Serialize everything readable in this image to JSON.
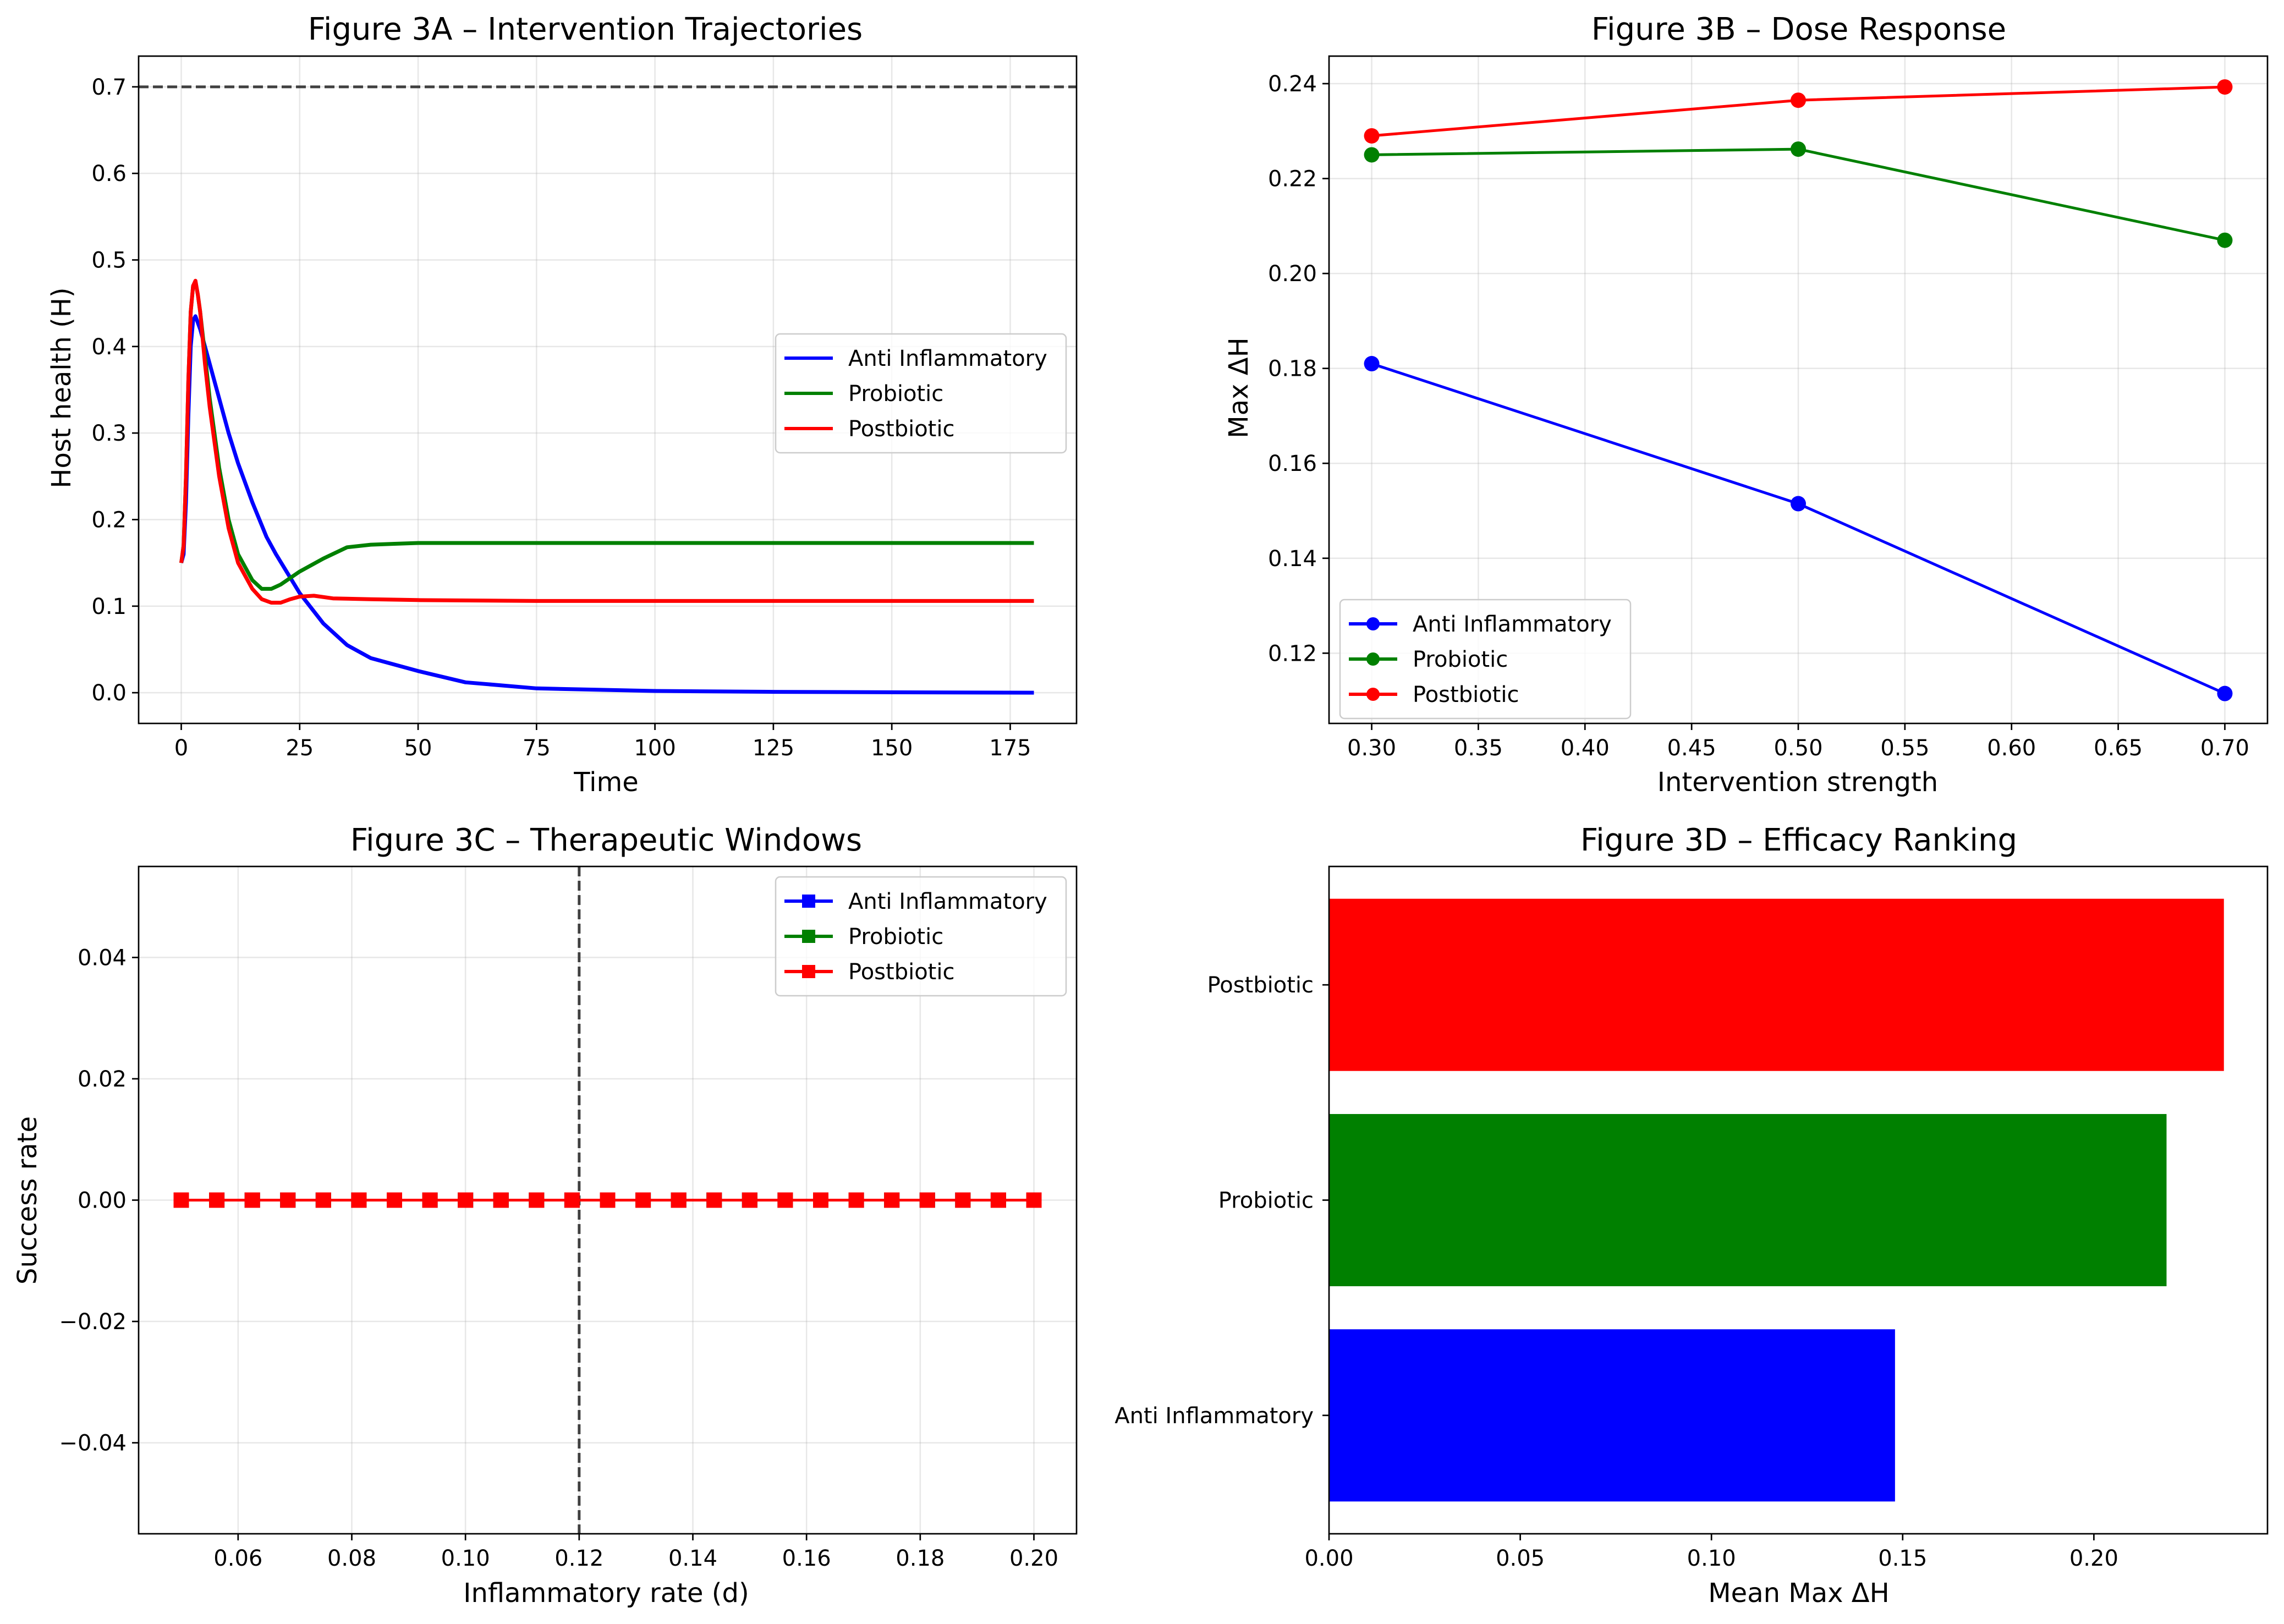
{
  "figure": {
    "background": "#ffffff"
  },
  "series_colors": {
    "Anti Inflammatory": "#0000ff",
    "Probiotic": "#008000",
    "Postbiotic": "#ff0000",
    "reference_line": "#404040"
  },
  "chart_data": [
    {
      "id": "3A",
      "type": "line",
      "title": "Figure 3A – Intervention Trajectories",
      "xlabel": "Time",
      "ylabel": "Host health (H)",
      "xlim": [
        -9,
        189
      ],
      "ylim": [
        -0.0355,
        0.7355
      ],
      "xticks": [
        0,
        25,
        50,
        75,
        100,
        125,
        150,
        175
      ],
      "xtick_labels": [
        "0",
        "25",
        "50",
        "75",
        "100",
        "125",
        "150",
        "175"
      ],
      "yticks": [
        0.0,
        0.1,
        0.2,
        0.3,
        0.4,
        0.5,
        0.6,
        0.7
      ],
      "ytick_labels": [
        "0.0",
        "0.1",
        "0.2",
        "0.3",
        "0.4",
        "0.5",
        "0.6",
        "0.7"
      ],
      "grid": true,
      "legend_position": "center-right",
      "reference_line": {
        "orientation": "horizontal",
        "value": 0.7,
        "style": "dashed"
      },
      "series": [
        {
          "name": "Anti Inflammatory",
          "x": [
            0,
            0.5,
            1,
            1.5,
            2,
            2.5,
            3,
            4,
            5,
            6,
            8,
            10,
            12,
            15,
            18,
            20,
            25,
            30,
            35,
            40,
            50,
            60,
            75,
            100,
            125,
            150,
            180
          ],
          "y": [
            0.15,
            0.16,
            0.22,
            0.32,
            0.4,
            0.43,
            0.435,
            0.42,
            0.4,
            0.38,
            0.34,
            0.3,
            0.265,
            0.22,
            0.18,
            0.16,
            0.115,
            0.08,
            0.055,
            0.04,
            0.025,
            0.012,
            0.005,
            0.002,
            0.001,
            0.0005,
            0.0
          ]
        },
        {
          "name": "Probiotic",
          "x": [
            0,
            0.5,
            1,
            1.5,
            2,
            2.5,
            3,
            3.5,
            4,
            5,
            6,
            8,
            10,
            12,
            15,
            17,
            19,
            21,
            25,
            30,
            35,
            40,
            45,
            50,
            60,
            75,
            100,
            125,
            150,
            180
          ],
          "y": [
            0.15,
            0.17,
            0.25,
            0.36,
            0.44,
            0.47,
            0.475,
            0.46,
            0.44,
            0.39,
            0.34,
            0.26,
            0.2,
            0.16,
            0.13,
            0.12,
            0.12,
            0.125,
            0.14,
            0.155,
            0.168,
            0.171,
            0.172,
            0.173,
            0.173,
            0.173,
            0.173,
            0.173,
            0.173,
            0.173
          ]
        },
        {
          "name": "Postbiotic",
          "x": [
            0,
            0.5,
            1,
            1.5,
            2,
            2.5,
            3,
            3.5,
            4,
            5,
            6,
            8,
            10,
            12,
            15,
            17,
            19,
            21,
            23,
            25,
            28,
            32,
            40,
            50,
            75,
            100,
            125,
            150,
            180
          ],
          "y": [
            0.15,
            0.17,
            0.25,
            0.36,
            0.44,
            0.47,
            0.476,
            0.46,
            0.44,
            0.38,
            0.33,
            0.25,
            0.19,
            0.15,
            0.12,
            0.108,
            0.104,
            0.104,
            0.108,
            0.111,
            0.112,
            0.109,
            0.108,
            0.107,
            0.106,
            0.106,
            0.106,
            0.106,
            0.106
          ]
        }
      ]
    },
    {
      "id": "3B",
      "type": "line",
      "title": "Figure 3B – Dose Response",
      "xlabel": "Intervention strength",
      "ylabel": "Max ΔH",
      "xlim": [
        0.28,
        0.72
      ],
      "ylim": [
        0.1052,
        0.2458
      ],
      "xticks": [
        0.3,
        0.35,
        0.4,
        0.45,
        0.5,
        0.55,
        0.6,
        0.65,
        0.7
      ],
      "xtick_labels": [
        "0.30",
        "0.35",
        "0.40",
        "0.45",
        "0.50",
        "0.55",
        "0.60",
        "0.65",
        "0.70"
      ],
      "yticks": [
        0.12,
        0.14,
        0.16,
        0.18,
        0.2,
        0.22,
        0.24
      ],
      "ytick_labels": [
        "0.12",
        "0.14",
        "0.16",
        "0.18",
        "0.20",
        "0.22",
        "0.24"
      ],
      "grid": true,
      "legend_position": "lower-left",
      "series": [
        {
          "name": "Anti Inflammatory",
          "x": [
            0.3,
            0.5,
            0.7
          ],
          "y": [
            0.181,
            0.1515,
            0.1115
          ]
        },
        {
          "name": "Probiotic",
          "x": [
            0.3,
            0.5,
            0.7
          ],
          "y": [
            0.225,
            0.2262,
            0.207
          ]
        },
        {
          "name": "Postbiotic",
          "x": [
            0.3,
            0.5,
            0.7
          ],
          "y": [
            0.229,
            0.2365,
            0.2393
          ]
        }
      ]
    },
    {
      "id": "3C",
      "type": "line",
      "title": "Figure 3C – Therapeutic Windows",
      "xlabel": "Inflammatory rate (d)",
      "ylabel": "Success rate",
      "xlim": [
        0.0425,
        0.2075
      ],
      "ylim": [
        -0.055,
        0.055
      ],
      "xticks": [
        0.06,
        0.08,
        0.1,
        0.12,
        0.14,
        0.16,
        0.18,
        0.2
      ],
      "xtick_labels": [
        "0.06",
        "0.08",
        "0.10",
        "0.12",
        "0.14",
        "0.16",
        "0.18",
        "0.20"
      ],
      "yticks": [
        -0.04,
        -0.02,
        0.0,
        0.02,
        0.04
      ],
      "ytick_labels": [
        "−0.04",
        "−0.02",
        "0.00",
        "0.02",
        "0.04"
      ],
      "grid": true,
      "legend_position": "top-right",
      "reference_line": {
        "orientation": "vertical",
        "value": 0.12,
        "style": "dashed"
      },
      "series": [
        {
          "name": "Anti Inflammatory",
          "x": [
            0.05,
            0.05625,
            0.0625,
            0.06875,
            0.075,
            0.08125,
            0.0875,
            0.09375,
            0.1,
            0.10625,
            0.1125,
            0.11875,
            0.125,
            0.13125,
            0.1375,
            0.14375,
            0.15,
            0.15625,
            0.1625,
            0.16875,
            0.175,
            0.18125,
            0.1875,
            0.19375,
            0.2
          ],
          "y": [
            0,
            0,
            0,
            0,
            0,
            0,
            0,
            0,
            0,
            0,
            0,
            0,
            0,
            0,
            0,
            0,
            0,
            0,
            0,
            0,
            0,
            0,
            0,
            0,
            0
          ]
        },
        {
          "name": "Probiotic",
          "x": [
            0.05,
            0.05625,
            0.0625,
            0.06875,
            0.075,
            0.08125,
            0.0875,
            0.09375,
            0.1,
            0.10625,
            0.1125,
            0.11875,
            0.125,
            0.13125,
            0.1375,
            0.14375,
            0.15,
            0.15625,
            0.1625,
            0.16875,
            0.175,
            0.18125,
            0.1875,
            0.19375,
            0.2
          ],
          "y": [
            0,
            0,
            0,
            0,
            0,
            0,
            0,
            0,
            0,
            0,
            0,
            0,
            0,
            0,
            0,
            0,
            0,
            0,
            0,
            0,
            0,
            0,
            0,
            0,
            0
          ]
        },
        {
          "name": "Postbiotic",
          "x": [
            0.05,
            0.05625,
            0.0625,
            0.06875,
            0.075,
            0.08125,
            0.0875,
            0.09375,
            0.1,
            0.10625,
            0.1125,
            0.11875,
            0.125,
            0.13125,
            0.1375,
            0.14375,
            0.15,
            0.15625,
            0.1625,
            0.16875,
            0.175,
            0.18125,
            0.1875,
            0.19375,
            0.2
          ],
          "y": [
            0,
            0,
            0,
            0,
            0,
            0,
            0,
            0,
            0,
            0,
            0,
            0,
            0,
            0,
            0,
            0,
            0,
            0,
            0,
            0,
            0,
            0,
            0,
            0,
            0
          ]
        }
      ]
    },
    {
      "id": "3D",
      "type": "bar",
      "orientation": "horizontal",
      "title": "Figure 3D – Efficacy Ranking",
      "xlabel": "Mean Max ΔH",
      "ylabel": "",
      "xlim": [
        0,
        0.2454
      ],
      "xticks": [
        0.0,
        0.05,
        0.1,
        0.15,
        0.2
      ],
      "xtick_labels": [
        "0.00",
        "0.05",
        "0.10",
        "0.15",
        "0.20"
      ],
      "grid": false,
      "categories": [
        "Anti Inflammatory",
        "Probiotic",
        "Postbiotic"
      ],
      "values": [
        0.148,
        0.219,
        0.234
      ]
    }
  ]
}
